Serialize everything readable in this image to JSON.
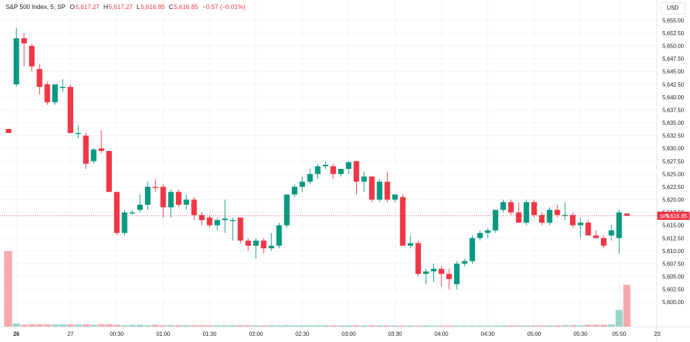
{
  "legend": {
    "symbol": "S&P 500 Index, 5, SP",
    "open_label": "O",
    "open": "5,617.27",
    "high_label": "H",
    "high": "5,617.27",
    "low_label": "L",
    "low": "5,616.85",
    "close_label": "C",
    "close": "5,616.85",
    "change": "−0.57 (−0.01%)"
  },
  "currency": "USD",
  "colors": {
    "up": "#089981",
    "down": "#f23645",
    "up_volume": "#99d4cb",
    "down_volume": "#f7a9ad",
    "grid": "#f0f3fa",
    "axis_text": "#131722"
  },
  "chart_data": {
    "type": "candlestick",
    "ylim": [
      5598,
      5656
    ],
    "y_ticks": [
      "5,655.00",
      "5,652.50",
      "5,650.00",
      "5,647.50",
      "5,645.00",
      "5,642.50",
      "5,640.00",
      "5,637.50",
      "5,635.00",
      "5,632.50",
      "5,630.00",
      "5,627.50",
      "5,625.00",
      "5,622.50",
      "5,620.00",
      "5,617.50",
      "5,615.00",
      "5,612.50",
      "5,610.00",
      "5,607.50",
      "5,605.00",
      "5,602.50",
      "5,600.00"
    ],
    "x_ticks": [
      {
        "index": 1,
        "label": "26",
        "bold": true
      },
      {
        "index": 8,
        "label": "27",
        "bold": false
      },
      {
        "index": 14,
        "label": "00:30",
        "bold": false
      },
      {
        "index": 20,
        "label": "01:00",
        "bold": false
      },
      {
        "index": 26,
        "label": "01:30",
        "bold": false
      },
      {
        "index": 32,
        "label": "02:00",
        "bold": false
      },
      {
        "index": 38,
        "label": "02:30",
        "bold": false
      },
      {
        "index": 44,
        "label": "03:00",
        "bold": false
      },
      {
        "index": 50,
        "label": "03:30",
        "bold": false
      },
      {
        "index": 56,
        "label": "04:00",
        "bold": false
      },
      {
        "index": 62,
        "label": "04:30",
        "bold": false
      },
      {
        "index": 68,
        "label": "05:00",
        "bold": false
      },
      {
        "index": 74,
        "label": "05:30",
        "bold": false
      },
      {
        "index": 79,
        "label": "05:50",
        "bold": false
      },
      {
        "index": 84,
        "label": "23:",
        "bold": false
      }
    ],
    "price_label": {
      "symbol": "SPX",
      "value": "5,616.85",
      "price": 5616.85
    },
    "candles": [
      {
        "o": 5633.8,
        "h": 5633.8,
        "l": 5633.0,
        "c": 5633.0
      },
      {
        "o": 5642.5,
        "h": 5653.5,
        "l": 5642.0,
        "c": 5651.5
      },
      {
        "o": 5651.5,
        "h": 5652.5,
        "l": 5646.0,
        "c": 5650.5
      },
      {
        "o": 5650.0,
        "h": 5650.5,
        "l": 5645.0,
        "c": 5646.0
      },
      {
        "o": 5645.5,
        "h": 5646.5,
        "l": 5640.5,
        "c": 5642.0
      },
      {
        "o": 5642.5,
        "h": 5643.0,
        "l": 5638.5,
        "c": 5639.0
      },
      {
        "o": 5639.0,
        "h": 5642.5,
        "l": 5638.5,
        "c": 5642.5
      },
      {
        "o": 5642.0,
        "h": 5643.5,
        "l": 5641.0,
        "c": 5642.0
      },
      {
        "o": 5642.0,
        "h": 5642.5,
        "l": 5633.0,
        "c": 5633.0
      },
      {
        "o": 5633.0,
        "h": 5634.5,
        "l": 5632.0,
        "c": 5633.0
      },
      {
        "o": 5632.5,
        "h": 5633.0,
        "l": 5626.0,
        "c": 5627.0
      },
      {
        "o": 5627.5,
        "h": 5630.0,
        "l": 5627.0,
        "c": 5629.8
      },
      {
        "o": 5630.0,
        "h": 5633.5,
        "l": 5629.0,
        "c": 5629.5
      },
      {
        "o": 5629.5,
        "h": 5629.5,
        "l": 5621.5,
        "c": 5621.5
      },
      {
        "o": 5621.5,
        "h": 5621.5,
        "l": 5613.0,
        "c": 5613.5
      },
      {
        "o": 5613.5,
        "h": 5618.0,
        "l": 5613.0,
        "c": 5617.5
      },
      {
        "o": 5617.5,
        "h": 5618.0,
        "l": 5617.0,
        "c": 5617.5
      },
      {
        "o": 5618.0,
        "h": 5621.0,
        "l": 5617.5,
        "c": 5619.0
      },
      {
        "o": 5619.0,
        "h": 5623.5,
        "l": 5618.0,
        "c": 5622.5
      },
      {
        "o": 5622.5,
        "h": 5624.0,
        "l": 5621.5,
        "c": 5622.3
      },
      {
        "o": 5622.5,
        "h": 5623.0,
        "l": 5616.5,
        "c": 5618.5
      },
      {
        "o": 5618.5,
        "h": 5622.0,
        "l": 5616.5,
        "c": 5621.5
      },
      {
        "o": 5621.5,
        "h": 5622.0,
        "l": 5618.5,
        "c": 5619.0
      },
      {
        "o": 5619.0,
        "h": 5621.0,
        "l": 5618.0,
        "c": 5620.0
      },
      {
        "o": 5620.0,
        "h": 5620.5,
        "l": 5616.0,
        "c": 5617.0
      },
      {
        "o": 5617.0,
        "h": 5617.5,
        "l": 5615.0,
        "c": 5616.0
      },
      {
        "o": 5616.5,
        "h": 5617.0,
        "l": 5614.5,
        "c": 5615.0
      },
      {
        "o": 5615.0,
        "h": 5616.5,
        "l": 5614.0,
        "c": 5616.0
      },
      {
        "o": 5616.0,
        "h": 5620.0,
        "l": 5613.5,
        "c": 5616.3
      },
      {
        "o": 5616.0,
        "h": 5616.5,
        "l": 5612.0,
        "c": 5616.0
      },
      {
        "o": 5616.5,
        "h": 5616.5,
        "l": 5611.5,
        "c": 5612.0
      },
      {
        "o": 5612.0,
        "h": 5612.5,
        "l": 5610.0,
        "c": 5611.0
      },
      {
        "o": 5611.0,
        "h": 5612.5,
        "l": 5608.5,
        "c": 5612.0
      },
      {
        "o": 5612.0,
        "h": 5612.5,
        "l": 5609.5,
        "c": 5610.5
      },
      {
        "o": 5610.5,
        "h": 5613.5,
        "l": 5610.0,
        "c": 5611.0
      },
      {
        "o": 5611.0,
        "h": 5615.5,
        "l": 5610.5,
        "c": 5615.0
      },
      {
        "o": 5615.0,
        "h": 5621.0,
        "l": 5614.5,
        "c": 5621.0
      },
      {
        "o": 5621.0,
        "h": 5623.0,
        "l": 5620.5,
        "c": 5622.5
      },
      {
        "o": 5622.5,
        "h": 5624.5,
        "l": 5621.5,
        "c": 5623.5
      },
      {
        "o": 5623.5,
        "h": 5626.0,
        "l": 5623.0,
        "c": 5625.0
      },
      {
        "o": 5625.0,
        "h": 5627.0,
        "l": 5624.0,
        "c": 5626.5
      },
      {
        "o": 5626.5,
        "h": 5627.5,
        "l": 5626.0,
        "c": 5626.8
      },
      {
        "o": 5626.5,
        "h": 5627.0,
        "l": 5624.0,
        "c": 5625.0
      },
      {
        "o": 5625.0,
        "h": 5626.0,
        "l": 5624.5,
        "c": 5626.0
      },
      {
        "o": 5626.0,
        "h": 5627.5,
        "l": 5625.0,
        "c": 5627.3
      },
      {
        "o": 5627.5,
        "h": 5627.5,
        "l": 5621.0,
        "c": 5623.5
      },
      {
        "o": 5623.5,
        "h": 5625.5,
        "l": 5621.5,
        "c": 5624.5
      },
      {
        "o": 5624.5,
        "h": 5624.5,
        "l": 5619.5,
        "c": 5620.0
      },
      {
        "o": 5620.0,
        "h": 5624.0,
        "l": 5619.5,
        "c": 5623.5
      },
      {
        "o": 5623.5,
        "h": 5625.5,
        "l": 5619.5,
        "c": 5620.0
      },
      {
        "o": 5620.0,
        "h": 5621.0,
        "l": 5619.5,
        "c": 5621.0
      },
      {
        "o": 5620.5,
        "h": 5621.0,
        "l": 5611.0,
        "c": 5611.0
      },
      {
        "o": 5611.0,
        "h": 5613.0,
        "l": 5610.5,
        "c": 5611.5
      },
      {
        "o": 5611.5,
        "h": 5612.0,
        "l": 5605.0,
        "c": 5605.5
      },
      {
        "o": 5605.5,
        "h": 5606.5,
        "l": 5603.5,
        "c": 5606.0
      },
      {
        "o": 5606.0,
        "h": 5607.5,
        "l": 5604.0,
        "c": 5606.5
      },
      {
        "o": 5606.5,
        "h": 5607.0,
        "l": 5603.0,
        "c": 5605.5
      },
      {
        "o": 5605.5,
        "h": 5606.5,
        "l": 5602.5,
        "c": 5604.5
      },
      {
        "o": 5603.5,
        "h": 5608.0,
        "l": 5602.5,
        "c": 5607.5
      },
      {
        "o": 5607.5,
        "h": 5608.5,
        "l": 5607.0,
        "c": 5608.0
      },
      {
        "o": 5608.0,
        "h": 5613.0,
        "l": 5607.5,
        "c": 5612.5
      },
      {
        "o": 5612.5,
        "h": 5614.0,
        "l": 5612.0,
        "c": 5613.5
      },
      {
        "o": 5613.5,
        "h": 5614.5,
        "l": 5612.5,
        "c": 5614.0
      },
      {
        "o": 5614.0,
        "h": 5618.0,
        "l": 5613.5,
        "c": 5618.0
      },
      {
        "o": 5618.0,
        "h": 5620.0,
        "l": 5617.5,
        "c": 5619.5
      },
      {
        "o": 5619.5,
        "h": 5620.0,
        "l": 5617.0,
        "c": 5617.5
      },
      {
        "o": 5617.5,
        "h": 5619.5,
        "l": 5615.5,
        "c": 5615.5
      },
      {
        "o": 5615.5,
        "h": 5620.0,
        "l": 5615.0,
        "c": 5619.5
      },
      {
        "o": 5619.5,
        "h": 5620.0,
        "l": 5616.5,
        "c": 5617.0
      },
      {
        "o": 5617.0,
        "h": 5617.5,
        "l": 5615.0,
        "c": 5615.5
      },
      {
        "o": 5615.5,
        "h": 5618.5,
        "l": 5615.0,
        "c": 5618.0
      },
      {
        "o": 5618.0,
        "h": 5619.0,
        "l": 5616.5,
        "c": 5617.0
      },
      {
        "o": 5617.0,
        "h": 5619.5,
        "l": 5616.0,
        "c": 5617.0
      },
      {
        "o": 5617.0,
        "h": 5617.5,
        "l": 5614.5,
        "c": 5615.0
      },
      {
        "o": 5615.0,
        "h": 5616.5,
        "l": 5612.5,
        "c": 5615.5
      },
      {
        "o": 5615.5,
        "h": 5616.0,
        "l": 5613.0,
        "c": 5613.0
      },
      {
        "o": 5613.0,
        "h": 5614.0,
        "l": 5612.5,
        "c": 5612.5
      },
      {
        "o": 5612.5,
        "h": 5613.0,
        "l": 5610.5,
        "c": 5611.0
      },
      {
        "o": 5613.0,
        "h": 5615.0,
        "l": 5612.0,
        "c": 5614.0
      },
      {
        "o": 5612.5,
        "h": 5618.0,
        "l": 5609.5,
        "c": 5617.5
      },
      {
        "o": 5617.3,
        "h": 5617.3,
        "l": 5616.85,
        "c": 5616.85
      }
    ],
    "volume_scale": 1.0,
    "volumes": [
      0.9,
      0.04,
      0.025,
      0.03,
      0.03,
      0.03,
      0.03,
      0.03,
      0.03,
      0.03,
      0.03,
      0.025,
      0.03,
      0.03,
      0.025,
      0.02,
      0.025,
      0.025,
      0.02,
      0.025,
      0.02,
      0.02,
      0.02,
      0.02,
      0.02,
      0.02,
      0.02,
      0.02,
      0.02,
      0.02,
      0.02,
      0.02,
      0.018,
      0.018,
      0.02,
      0.018,
      0.02,
      0.018,
      0.018,
      0.018,
      0.018,
      0.018,
      0.018,
      0.018,
      0.018,
      0.018,
      0.018,
      0.018,
      0.018,
      0.018,
      0.018,
      0.016,
      0.018,
      0.016,
      0.018,
      0.016,
      0.016,
      0.016,
      0.016,
      0.016,
      0.016,
      0.016,
      0.016,
      0.016,
      0.018,
      0.018,
      0.018,
      0.018,
      0.018,
      0.018,
      0.018,
      0.018,
      0.02,
      0.02,
      0.02,
      0.025,
      0.025,
      0.025,
      0.03,
      0.2,
      0.5
    ],
    "volume_ylim": [
      0,
      1.0
    ],
    "volume_first_bar_partial": true
  }
}
